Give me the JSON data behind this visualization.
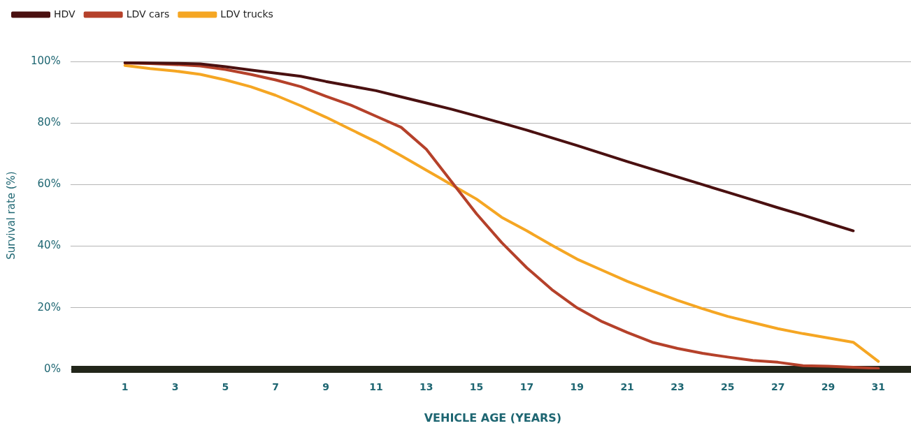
{
  "chart_data": {
    "type": "line",
    "xlabel": "VEHICLE AGE (YEARS)",
    "ylabel": "Survival rate (%)",
    "xlim": [
      -1,
      32.3
    ],
    "xticks": [
      1,
      3,
      5,
      7,
      9,
      11,
      13,
      15,
      17,
      19,
      21,
      23,
      25,
      27,
      29,
      31
    ],
    "ylim": [
      0,
      100
    ],
    "yticks": [
      {
        "value": 0,
        "label": "0%"
      },
      {
        "value": 20,
        "label": "20%"
      },
      {
        "value": 40,
        "label": "40%"
      },
      {
        "value": 60,
        "label": "60%"
      },
      {
        "value": 80,
        "label": "80%"
      },
      {
        "value": 100,
        "label": "100%"
      }
    ],
    "grid": "y",
    "legend": "top left",
    "marker": "none",
    "line_style": "solid",
    "series": [
      {
        "name": "HDV",
        "color": "#4a1010",
        "x": [
          1,
          2,
          3,
          4,
          5,
          6,
          7,
          8,
          9,
          10,
          11,
          12,
          13,
          14,
          15,
          16,
          17,
          18,
          19,
          20,
          21,
          22,
          23,
          24,
          25,
          26,
          27,
          28,
          29,
          30
        ],
        "values": [
          99.6,
          99.5,
          99.4,
          99.2,
          98.3,
          97.2,
          96.2,
          95.2,
          93.5,
          92,
          90.5,
          88.5,
          86.5,
          84.5,
          82.3,
          80,
          77.7,
          75.2,
          72.7,
          70.1,
          67.5,
          65,
          62.5,
          60,
          57.5,
          55,
          52.5,
          50.1,
          47.5,
          45
        ]
      },
      {
        "name": "LDV cars",
        "color": "#b5412a",
        "x": [
          1,
          2,
          3,
          4,
          5,
          6,
          7,
          8,
          9,
          10,
          11,
          12,
          13,
          14,
          15,
          16,
          17,
          18,
          19,
          20,
          21,
          22,
          23,
          24,
          25,
          26,
          27,
          28,
          29,
          30,
          31
        ],
        "values": [
          99.5,
          99.3,
          99,
          98.5,
          97.4,
          95.8,
          94,
          91.8,
          88.7,
          85.8,
          82.2,
          78.6,
          71.5,
          61,
          50.5,
          41.2,
          33,
          25.9,
          20,
          15.5,
          12,
          8.8,
          6.8,
          5.2,
          4,
          2.9,
          2.3,
          1.2,
          1,
          0.7,
          0.3
        ]
      },
      {
        "name": "LDV trucks",
        "color": "#f5a623",
        "x": [
          1,
          2,
          3,
          4,
          5,
          6,
          7,
          8,
          9,
          10,
          11,
          12,
          13,
          14,
          15,
          16,
          17,
          18,
          19,
          20,
          21,
          22,
          23,
          24,
          25,
          26,
          27,
          28,
          29,
          30,
          31
        ],
        "values": [
          98.7,
          97.7,
          96.9,
          95.8,
          94,
          91.8,
          89,
          85.6,
          81.9,
          77.9,
          73.9,
          69.4,
          64.7,
          60,
          55.3,
          49.4,
          45,
          40.3,
          35.8,
          32.2,
          28.6,
          25.4,
          22.4,
          19.7,
          17.2,
          15.2,
          13.2,
          11.6,
          10.2,
          8.8,
          2.6
        ]
      }
    ]
  }
}
